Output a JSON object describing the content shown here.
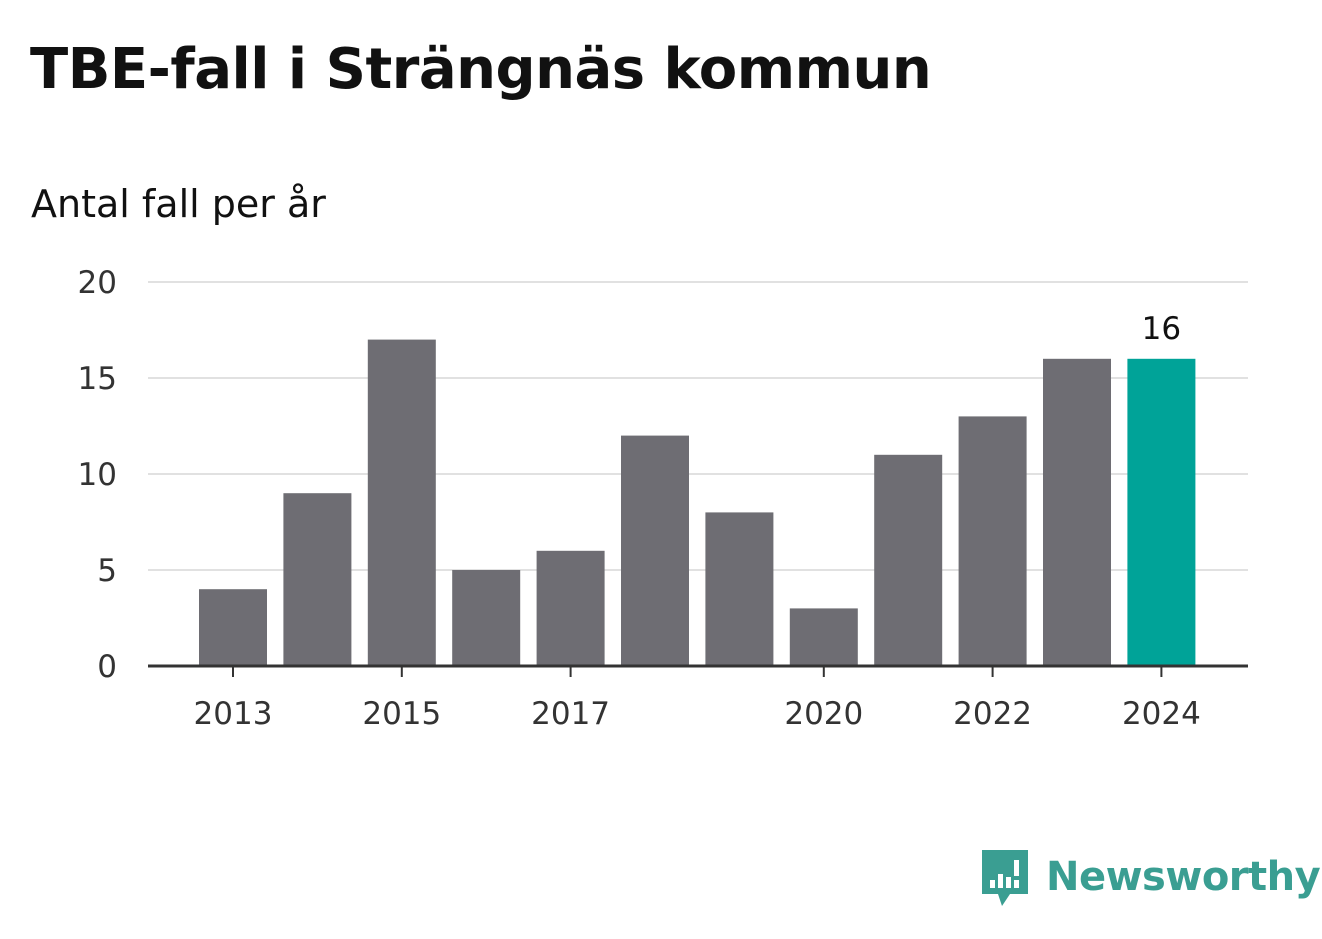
{
  "title": "TBE-fall i Strängnäs kommun",
  "subtitle": "Antal fall per år",
  "colors": {
    "bar": "#6e6d73",
    "highlight": "#00a398",
    "grid": "#e1e1e1",
    "axis": "#333333",
    "brand": "#3a9e92"
  },
  "brand": {
    "name": "Newsworthy",
    "icon": "newsworthy-logo-icon"
  },
  "chart_data": {
    "type": "bar",
    "categories": [
      "2013",
      "2014",
      "2015",
      "2016",
      "2017",
      "2018",
      "2019",
      "2020",
      "2021",
      "2022",
      "2023",
      "2024"
    ],
    "values": [
      4,
      9,
      17,
      5,
      6,
      12,
      8,
      3,
      11,
      13,
      16,
      16
    ],
    "highlight_category": "2024",
    "value_labels": [
      {
        "category": "2024",
        "text": "16"
      }
    ],
    "x_tick_labels": [
      "2013",
      "2015",
      "2017",
      "2020",
      "2022",
      "2024"
    ],
    "y_ticks": [
      0,
      5,
      10,
      15,
      20
    ],
    "ylim": [
      0,
      20
    ],
    "xlabel": "",
    "ylabel": "",
    "grid": true,
    "legend": false
  }
}
